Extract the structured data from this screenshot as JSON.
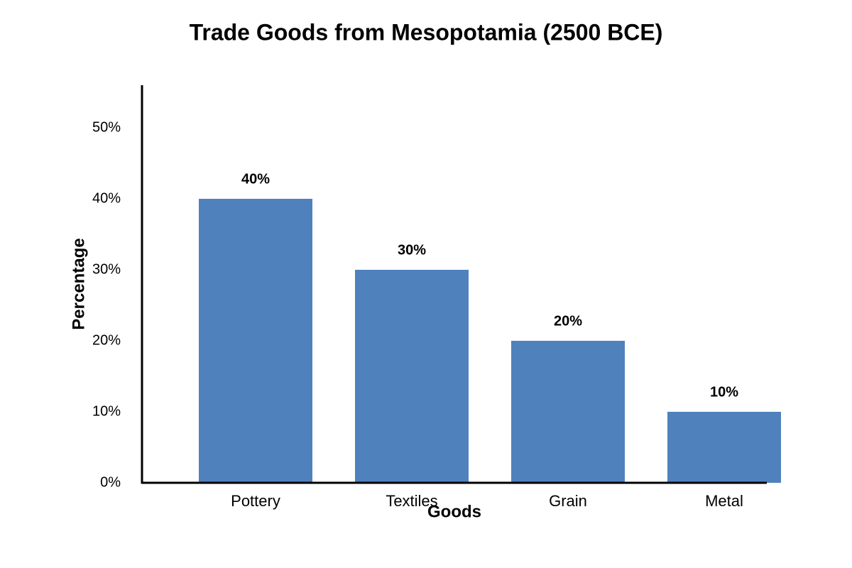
{
  "chart_data": {
    "type": "bar",
    "title": "Trade Goods from Mesopotamia (2500 BCE)",
    "x_label": "Goods",
    "y_label": "Percentage",
    "categories": [
      "Pottery",
      "Textiles",
      "Grain",
      "Metal"
    ],
    "values": [
      40,
      30,
      20,
      10
    ],
    "value_labels": [
      "40%",
      "30%",
      "20%",
      "10%"
    ],
    "color": "#4f81bd",
    "ylim": [
      0,
      56
    ],
    "yticks": [
      {
        "value": 0,
        "label": "0%"
      },
      {
        "value": 10,
        "label": "10%"
      },
      {
        "value": 20,
        "label": "20%"
      },
      {
        "value": 30,
        "label": "30%"
      },
      {
        "value": 40,
        "label": "40%"
      },
      {
        "value": 50,
        "label": "50%"
      }
    ],
    "grid": false
  }
}
